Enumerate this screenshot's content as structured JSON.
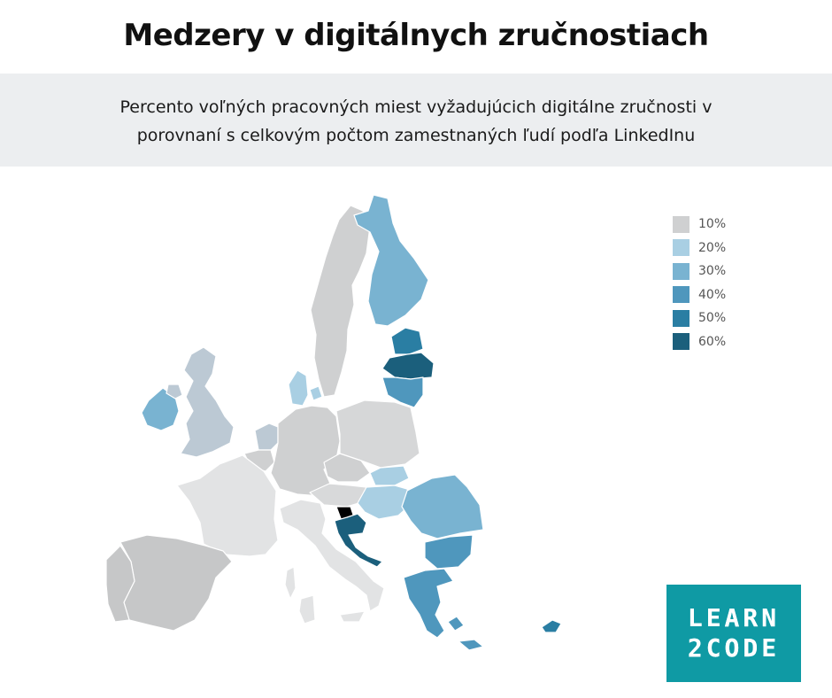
{
  "header": {
    "title": "Medzery v digitálnych zručnostiach",
    "subtitle_line1": "Percento voľných pracovných miest vyžadujúcich digitálne zručnosti v",
    "subtitle_line2": "porovnaní s celkovým počtom zamestnaných ľudí podľa LinkedInu"
  },
  "legend": [
    {
      "label": "10%",
      "color": "#cfd0d1"
    },
    {
      "label": "20%",
      "color": "#a9cfe3"
    },
    {
      "label": "30%",
      "color": "#79b3d1"
    },
    {
      "label": "40%",
      "color": "#4f97bd"
    },
    {
      "label": "50%",
      "color": "#2a7ea3"
    },
    {
      "label": "60%",
      "color": "#1b5f7c"
    }
  ],
  "map": {
    "regions": [
      {
        "name": "Finland",
        "color": "#79b3d1"
      },
      {
        "name": "Sweden",
        "color": "#cfd0d1"
      },
      {
        "name": "Estonia",
        "color": "#2a7ea3"
      },
      {
        "name": "Latvia",
        "color": "#1b5f7c"
      },
      {
        "name": "Lithuania",
        "color": "#4f97bd"
      },
      {
        "name": "Denmark",
        "color": "#a9cfe3"
      },
      {
        "name": "Ireland",
        "color": "#79b3d1"
      },
      {
        "name": "United Kingdom",
        "color": "#bcc9d4"
      },
      {
        "name": "Netherlands",
        "color": "#bcc9d4"
      },
      {
        "name": "Germany",
        "color": "#cfd0d1"
      },
      {
        "name": "Poland",
        "color": "#d6d7d8"
      },
      {
        "name": "Czechia",
        "color": "#cfd0d1"
      },
      {
        "name": "Slovakia",
        "color": "#a9cfe3"
      },
      {
        "name": "Hungary",
        "color": "#a9cfe3"
      },
      {
        "name": "Romania",
        "color": "#79b3d1"
      },
      {
        "name": "Bulgaria",
        "color": "#4f97bd"
      },
      {
        "name": "Greece",
        "color": "#4f97bd"
      },
      {
        "name": "Croatia",
        "color": "#1b5f7c"
      },
      {
        "name": "Austria",
        "color": "#d8d9da"
      },
      {
        "name": "France",
        "color": "#e2e3e4"
      },
      {
        "name": "Spain",
        "color": "#c6c7c8"
      },
      {
        "name": "Portugal",
        "color": "#c6c7c8"
      },
      {
        "name": "Italy",
        "color": "#e2e3e4"
      },
      {
        "name": "Belgium",
        "color": "#cfd0d1"
      },
      {
        "name": "Cyprus",
        "color": "#2a7ea3"
      }
    ]
  },
  "logo": {
    "line1": "LEARN",
    "line2": "2CODE"
  }
}
